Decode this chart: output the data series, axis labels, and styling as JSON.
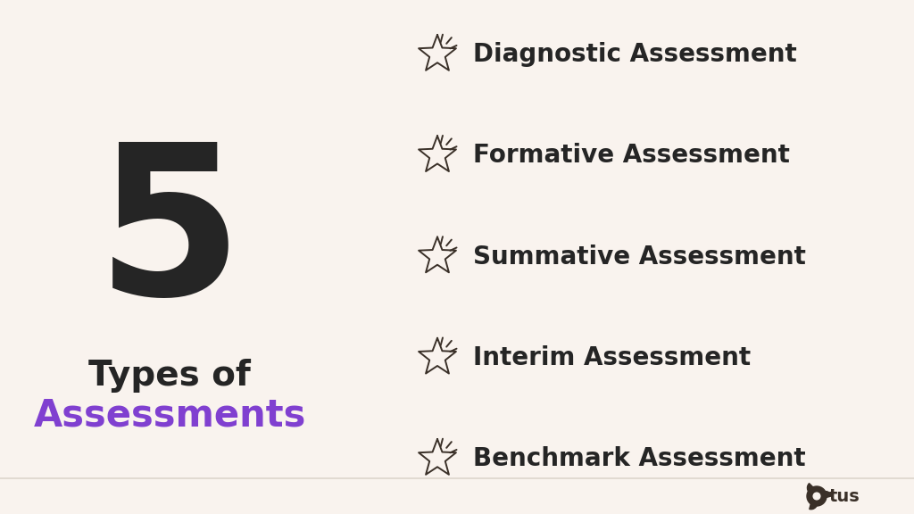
{
  "background_color": "#f9f3ee",
  "number": "5",
  "number_color": "#252525",
  "number_fontsize": 170,
  "title_line1": "Types of",
  "title_line1_color": "#252525",
  "title_line1_fontsize": 28,
  "title_line2": "Assessments",
  "title_line2_color": "#8040d0",
  "title_line2_fontsize": 30,
  "items": [
    "Diagnostic Assessment",
    "Formative Assessment",
    "Summative Assessment",
    "Interim Assessment",
    "Benchmark Assessment"
  ],
  "items_color": "#252525",
  "items_fontsize": 20,
  "star_color": "#3a3028",
  "logo_color": "#3a3028",
  "divider_color": "#ddd5cc"
}
